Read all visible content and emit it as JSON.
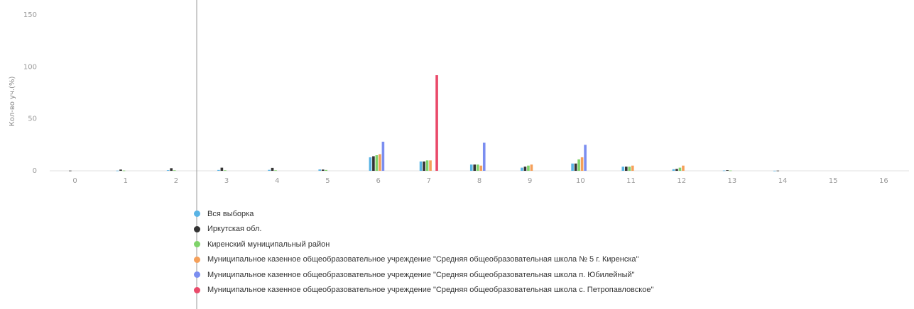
{
  "chart_data": {
    "type": "bar",
    "ylabel": "Кол-во уч.(%)",
    "ylim": [
      0,
      150
    ],
    "yticks": [
      "0",
      "50",
      "100",
      "150"
    ],
    "categories": [
      "0",
      "1",
      "2",
      "3",
      "4",
      "5",
      "6",
      "7",
      "8",
      "9",
      "10",
      "11",
      "12",
      "13",
      "14",
      "15",
      "16"
    ],
    "series": [
      {
        "name": "Вся выборка",
        "color": "#5ab4e5",
        "values": [
          0,
          0.2,
          0.6,
          0.8,
          0.9,
          1.3,
          13,
          9,
          6,
          3,
          7,
          4,
          1.5,
          0.3,
          0.1,
          0,
          0
        ]
      },
      {
        "name": "Иркутская обл.",
        "color": "#333333",
        "values": [
          0.2,
          1.2,
          2.5,
          3,
          2.8,
          1.2,
          14,
          9,
          6,
          4,
          7,
          4,
          1.8,
          0.6,
          0.2,
          0,
          0
        ]
      },
      {
        "name": "Киренский муниципальный район",
        "color": "#7fd36a",
        "values": [
          0,
          0.3,
          0.5,
          0.5,
          0.5,
          0.8,
          15,
          10,
          6,
          5,
          11,
          4,
          3,
          0.3,
          0,
          0,
          0
        ]
      },
      {
        "name": "Муниципальное казенное общеобразовательное учреждение \"Средняя общеобразовательная школа № 5 г. Киренска\"",
        "color": "#f5a05a",
        "values": [
          0,
          0,
          0,
          0,
          0,
          0,
          16,
          10,
          5,
          6,
          13,
          5,
          5,
          0,
          0,
          0,
          0
        ]
      },
      {
        "name": "Муниципальное казенное общеобразовательное учреждение \"Средняя общеобразовательная школа п. Юбилейный\"",
        "color": "#7b8ef0",
        "values": [
          0,
          0,
          0,
          0,
          0,
          0,
          28,
          0,
          27,
          0,
          25,
          0,
          0,
          0,
          0,
          0,
          0
        ]
      },
      {
        "name": "Муниципальное казенное общеобразовательное учреждение \"Средняя общеобразовательная школа с. Петропавловское\"",
        "color": "#ea4a6a",
        "values": [
          0,
          0,
          0,
          0,
          0,
          0,
          0,
          92,
          0,
          0,
          0,
          0,
          0,
          0,
          0,
          0,
          0
        ]
      }
    ],
    "legend_position": "bottom",
    "grid": false
  }
}
